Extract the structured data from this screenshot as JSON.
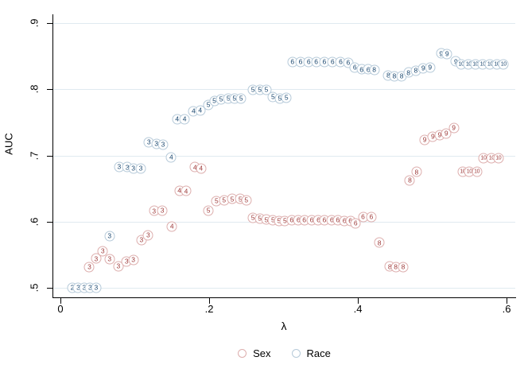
{
  "chart_data": {
    "type": "scatter",
    "title": "",
    "xlabel": "λ",
    "ylabel": "AUC",
    "grid": "horizontal",
    "legend_position": "bottom-center",
    "x_axis": {
      "range": [
        0,
        0.6
      ],
      "ticks": [
        {
          "v": 0,
          "t": "0"
        },
        {
          "v": 0.2,
          "t": ".2"
        },
        {
          "v": 0.4,
          "t": ".4"
        },
        {
          "v": 0.6,
          "t": ".6"
        }
      ]
    },
    "y_axis": {
      "range": [
        0.5,
        0.9
      ],
      "ticks": [
        {
          "v": 0.5,
          "t": ".5"
        },
        {
          "v": 0.6,
          "t": ".6"
        },
        {
          "v": 0.7,
          "t": ".7"
        },
        {
          "v": 0.8,
          "t": ".8"
        },
        {
          "v": 0.9,
          "t": ".9"
        }
      ]
    },
    "colors": {
      "gridline": "#e0eaf0",
      "axis": "#000000"
    },
    "series": [
      {
        "name": "Sex",
        "outline_color": "#ddaead",
        "text_color": "#9e3a39",
        "points": [
          [
            0.039,
            0.531,
            "3"
          ],
          [
            0.048,
            0.544,
            "3"
          ],
          [
            0.057,
            0.555,
            "3"
          ],
          [
            0.066,
            0.543,
            "3"
          ],
          [
            0.078,
            0.533,
            "3"
          ],
          [
            0.089,
            0.54,
            "3"
          ],
          [
            0.098,
            0.542,
            "3"
          ],
          [
            0.109,
            0.572,
            "3"
          ],
          [
            0.118,
            0.579,
            "3"
          ],
          [
            0.126,
            0.616,
            "3"
          ],
          [
            0.137,
            0.617,
            "3"
          ],
          [
            0.15,
            0.593,
            "4"
          ],
          [
            0.16,
            0.647,
            "4"
          ],
          [
            0.169,
            0.646,
            "4"
          ],
          [
            0.181,
            0.682,
            "4"
          ],
          [
            0.189,
            0.68,
            "4"
          ],
          [
            0.199,
            0.617,
            "5"
          ],
          [
            0.21,
            0.631,
            "5"
          ],
          [
            0.22,
            0.632,
            "5"
          ],
          [
            0.231,
            0.634,
            "5"
          ],
          [
            0.242,
            0.634,
            "5"
          ],
          [
            0.25,
            0.632,
            "5"
          ],
          [
            0.259,
            0.606,
            "5"
          ],
          [
            0.268,
            0.605,
            "5"
          ],
          [
            0.277,
            0.603,
            "5"
          ],
          [
            0.286,
            0.602,
            "5"
          ],
          [
            0.294,
            0.601,
            "5"
          ],
          [
            0.302,
            0.601,
            "5"
          ],
          [
            0.311,
            0.602,
            "6"
          ],
          [
            0.32,
            0.602,
            "6"
          ],
          [
            0.328,
            0.602,
            "6"
          ],
          [
            0.338,
            0.602,
            "6"
          ],
          [
            0.347,
            0.602,
            "6"
          ],
          [
            0.355,
            0.602,
            "6"
          ],
          [
            0.365,
            0.602,
            "6"
          ],
          [
            0.373,
            0.602,
            "6"
          ],
          [
            0.382,
            0.601,
            "6"
          ],
          [
            0.39,
            0.601,
            "6"
          ],
          [
            0.397,
            0.597,
            "6"
          ],
          [
            0.407,
            0.607,
            "6"
          ],
          [
            0.418,
            0.607,
            "6"
          ],
          [
            0.429,
            0.568,
            "8"
          ],
          [
            0.443,
            0.532,
            "8"
          ],
          [
            0.451,
            0.531,
            "8"
          ],
          [
            0.461,
            0.531,
            "8"
          ],
          [
            0.47,
            0.662,
            "8"
          ],
          [
            0.479,
            0.675,
            "8"
          ],
          [
            0.49,
            0.724,
            "9"
          ],
          [
            0.501,
            0.728,
            "9"
          ],
          [
            0.51,
            0.731,
            "9"
          ],
          [
            0.519,
            0.733,
            "9"
          ],
          [
            0.529,
            0.742,
            "9"
          ],
          [
            0.541,
            0.675,
            "10"
          ],
          [
            0.55,
            0.675,
            "10"
          ],
          [
            0.56,
            0.675,
            "10"
          ],
          [
            0.569,
            0.696,
            "10"
          ],
          [
            0.58,
            0.696,
            "10"
          ],
          [
            0.589,
            0.696,
            "10"
          ]
        ]
      },
      {
        "name": "Race",
        "outline_color": "#b6cad9",
        "text_color": "#1a476f",
        "points": [
          [
            0.016,
            0.5,
            "2"
          ],
          [
            0.024,
            0.5,
            "3"
          ],
          [
            0.032,
            0.5,
            "3"
          ],
          [
            0.04,
            0.5,
            "3"
          ],
          [
            0.048,
            0.5,
            "3"
          ],
          [
            0.066,
            0.578,
            "3"
          ],
          [
            0.079,
            0.683,
            "3"
          ],
          [
            0.09,
            0.682,
            "3"
          ],
          [
            0.098,
            0.68,
            "3"
          ],
          [
            0.108,
            0.68,
            "3"
          ],
          [
            0.119,
            0.72,
            "3"
          ],
          [
            0.129,
            0.718,
            "3"
          ],
          [
            0.138,
            0.716,
            "3"
          ],
          [
            0.149,
            0.697,
            "4"
          ],
          [
            0.157,
            0.755,
            "4"
          ],
          [
            0.167,
            0.755,
            "4"
          ],
          [
            0.179,
            0.767,
            "4"
          ],
          [
            0.188,
            0.768,
            "4"
          ],
          [
            0.199,
            0.776,
            "5"
          ],
          [
            0.207,
            0.782,
            "5"
          ],
          [
            0.216,
            0.785,
            "5"
          ],
          [
            0.226,
            0.786,
            "5"
          ],
          [
            0.234,
            0.786,
            "5"
          ],
          [
            0.243,
            0.786,
            "5"
          ],
          [
            0.259,
            0.799,
            "5"
          ],
          [
            0.268,
            0.799,
            "5"
          ],
          [
            0.277,
            0.799,
            "5"
          ],
          [
            0.286,
            0.788,
            "5"
          ],
          [
            0.295,
            0.786,
            "5"
          ],
          [
            0.304,
            0.787,
            "5"
          ],
          [
            0.312,
            0.841,
            "6"
          ],
          [
            0.323,
            0.841,
            "6"
          ],
          [
            0.334,
            0.841,
            "6"
          ],
          [
            0.344,
            0.841,
            "6"
          ],
          [
            0.355,
            0.841,
            "6"
          ],
          [
            0.366,
            0.841,
            "6"
          ],
          [
            0.377,
            0.841,
            "6"
          ],
          [
            0.387,
            0.84,
            "6"
          ],
          [
            0.396,
            0.833,
            "6"
          ],
          [
            0.405,
            0.83,
            "6"
          ],
          [
            0.414,
            0.83,
            "6"
          ],
          [
            0.422,
            0.829,
            "8"
          ],
          [
            0.441,
            0.821,
            "8"
          ],
          [
            0.449,
            0.82,
            "8"
          ],
          [
            0.459,
            0.82,
            "8"
          ],
          [
            0.468,
            0.825,
            "8"
          ],
          [
            0.478,
            0.828,
            "8"
          ],
          [
            0.488,
            0.832,
            "9"
          ],
          [
            0.497,
            0.833,
            "9"
          ],
          [
            0.512,
            0.854,
            "9"
          ],
          [
            0.52,
            0.853,
            "9"
          ],
          [
            0.532,
            0.842,
            "9"
          ],
          [
            0.539,
            0.838,
            "10"
          ],
          [
            0.549,
            0.837,
            "10"
          ],
          [
            0.558,
            0.837,
            "10"
          ],
          [
            0.568,
            0.837,
            "10"
          ],
          [
            0.578,
            0.837,
            "10"
          ],
          [
            0.587,
            0.837,
            "10"
          ],
          [
            0.596,
            0.837,
            "10"
          ]
        ]
      }
    ]
  }
}
